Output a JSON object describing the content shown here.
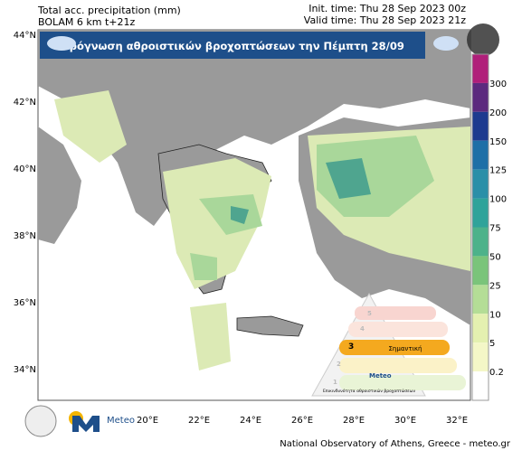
{
  "header": {
    "left_line1": "Total acc. precipitation (mm)",
    "left_line2": "BOLAM 6 km t+21z",
    "right_line1": "Init. time: Thu 28 Sep 2023 00z",
    "right_line2": "Valid time: Thu 28 Sep 2023 21z"
  },
  "banner": {
    "title": "Πρόγνωση αθροιστικών βροχοπτώσεων την Πέμπτη 28/09"
  },
  "latitudes": [
    "44°N",
    "42°N",
    "40°N",
    "38°N",
    "36°N",
    "34°N"
  ],
  "longitudes": [
    "20°E",
    "22°E",
    "24°E",
    "26°E",
    "28°E",
    "30°E",
    "32°E"
  ],
  "colorbar": {
    "labels": [
      "300",
      "200",
      "150",
      "125",
      "100",
      "75",
      "50",
      "25",
      "10",
      "5",
      "0.2"
    ]
  },
  "risk_legend": {
    "levels": [
      "1",
      "2",
      "3",
      "4",
      "5"
    ],
    "highlight": "Σημαντική",
    "brand": "Meteo",
    "caption": "Επικινδυνότητα αθροιστικών βροχοπτώσεων"
  },
  "footer": {
    "brand": "Meteo",
    "credit": "National Observatory of Athens, Greece - meteo.gr"
  }
}
